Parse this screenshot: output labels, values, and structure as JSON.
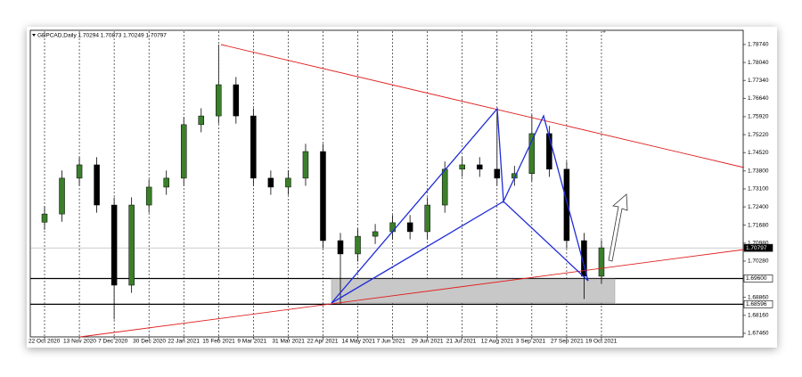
{
  "chart_data": {
    "type": "candlestick",
    "title": "GBPCAD,Daily  1.70294 1.70873 1.70249 1.70797",
    "categories": [
      "22 Oct 2020",
      null,
      "13 Nov 2020",
      null,
      "7 Dec 2020",
      null,
      "30 Dec 2020",
      null,
      "22 Jan 2021",
      null,
      "15 Feb 2021",
      null,
      "9 Mar 2021",
      null,
      "31 Mar 2021",
      null,
      "22 Apr 2021",
      null,
      "14 May 2021",
      null,
      "7 Jun 2021",
      null,
      "29 Jun 2021",
      null,
      "21 Jul 2021",
      null,
      "12 Aug 2021",
      null,
      "3 Sep 2021",
      null,
      "27 Sep 2021",
      null,
      "19 Oct 2021"
    ],
    "open": [
      1.718,
      1.7212,
      1.7352,
      1.7404,
      1.7247,
      1.6934,
      1.7247,
      1.7317,
      1.7352,
      1.7561,
      1.7595,
      1.7717,
      1.7595,
      1.7352,
      1.7317,
      1.7352,
      1.7456,
      1.7108,
      1.7056,
      1.7125,
      1.7143,
      1.7178,
      1.7143,
      1.7247,
      1.7387,
      1.7404,
      1.7387,
      1.7352,
      1.737,
      1.7526,
      1.7387,
      1.7108,
      1.6969
    ],
    "high": [
      1.7242,
      1.7382,
      1.7434,
      1.7434,
      1.7277,
      1.7277,
      1.7347,
      1.7382,
      1.7591,
      1.7625,
      1.7874,
      1.7747,
      1.7625,
      1.7382,
      1.7382,
      1.7486,
      1.7486,
      1.7138,
      1.7155,
      1.7173,
      1.7208,
      1.7208,
      1.7277,
      1.7417,
      1.7434,
      1.7434,
      1.7624,
      1.74,
      1.76,
      1.7556,
      1.7417,
      1.7138,
      1.711
    ],
    "low": [
      1.715,
      1.7182,
      1.7322,
      1.7217,
      1.68,
      1.6904,
      1.7217,
      1.7287,
      1.7322,
      1.7531,
      1.7565,
      1.7565,
      1.7322,
      1.7287,
      1.7287,
      1.7322,
      1.7078,
      1.686,
      1.7026,
      1.7095,
      1.7113,
      1.7113,
      1.7113,
      1.7217,
      1.7357,
      1.7357,
      1.7322,
      1.7322,
      1.734,
      1.7357,
      1.7078,
      1.688,
      1.6939
    ],
    "close": [
      1.7212,
      1.7352,
      1.7404,
      1.7247,
      1.6934,
      1.7247,
      1.7317,
      1.7352,
      1.7561,
      1.7595,
      1.7717,
      1.7595,
      1.7352,
      1.7317,
      1.7352,
      1.7456,
      1.7108,
      1.7056,
      1.7125,
      1.7143,
      1.7178,
      1.7143,
      1.7247,
      1.7387,
      1.7404,
      1.7387,
      1.7352,
      1.737,
      1.7526,
      1.7387,
      1.7108,
      1.6969,
      1.708
    ],
    "up_color": "#3b7f2a",
    "down_color": "#000000",
    "ylim": [
      1.6732,
      1.7926
    ],
    "yticks": [
      {
        "value": 1.7874,
        "label": "1.78740"
      },
      {
        "value": 1.7804,
        "label": "1.78040"
      },
      {
        "value": 1.7734,
        "label": "1.77340"
      },
      {
        "value": 1.7664,
        "label": "1.76640"
      },
      {
        "value": 1.7592,
        "label": "1.75920"
      },
      {
        "value": 1.7522,
        "label": "1.75220"
      },
      {
        "value": 1.7452,
        "label": "1.74520"
      },
      {
        "value": 1.738,
        "label": "1.73800"
      },
      {
        "value": 1.731,
        "label": "1.73100"
      },
      {
        "value": 1.724,
        "label": "1.72400"
      },
      {
        "value": 1.7168,
        "label": "1.71680"
      },
      {
        "value": 1.7098,
        "label": "1.70980"
      },
      {
        "value": 1.7028,
        "label": "1.70280"
      },
      {
        "value": 1.6886,
        "label": "1.68860"
      },
      {
        "value": 1.6816,
        "label": "1.68160"
      },
      {
        "value": 1.6746,
        "label": "1.67460"
      }
    ],
    "levels": [
      {
        "value": 1.70797,
        "label": "1.70797"
      },
      {
        "value": 1.696,
        "label": "1.69600"
      },
      {
        "value": 1.68596,
        "label": "1.68596"
      }
    ],
    "grid": true
  }
}
